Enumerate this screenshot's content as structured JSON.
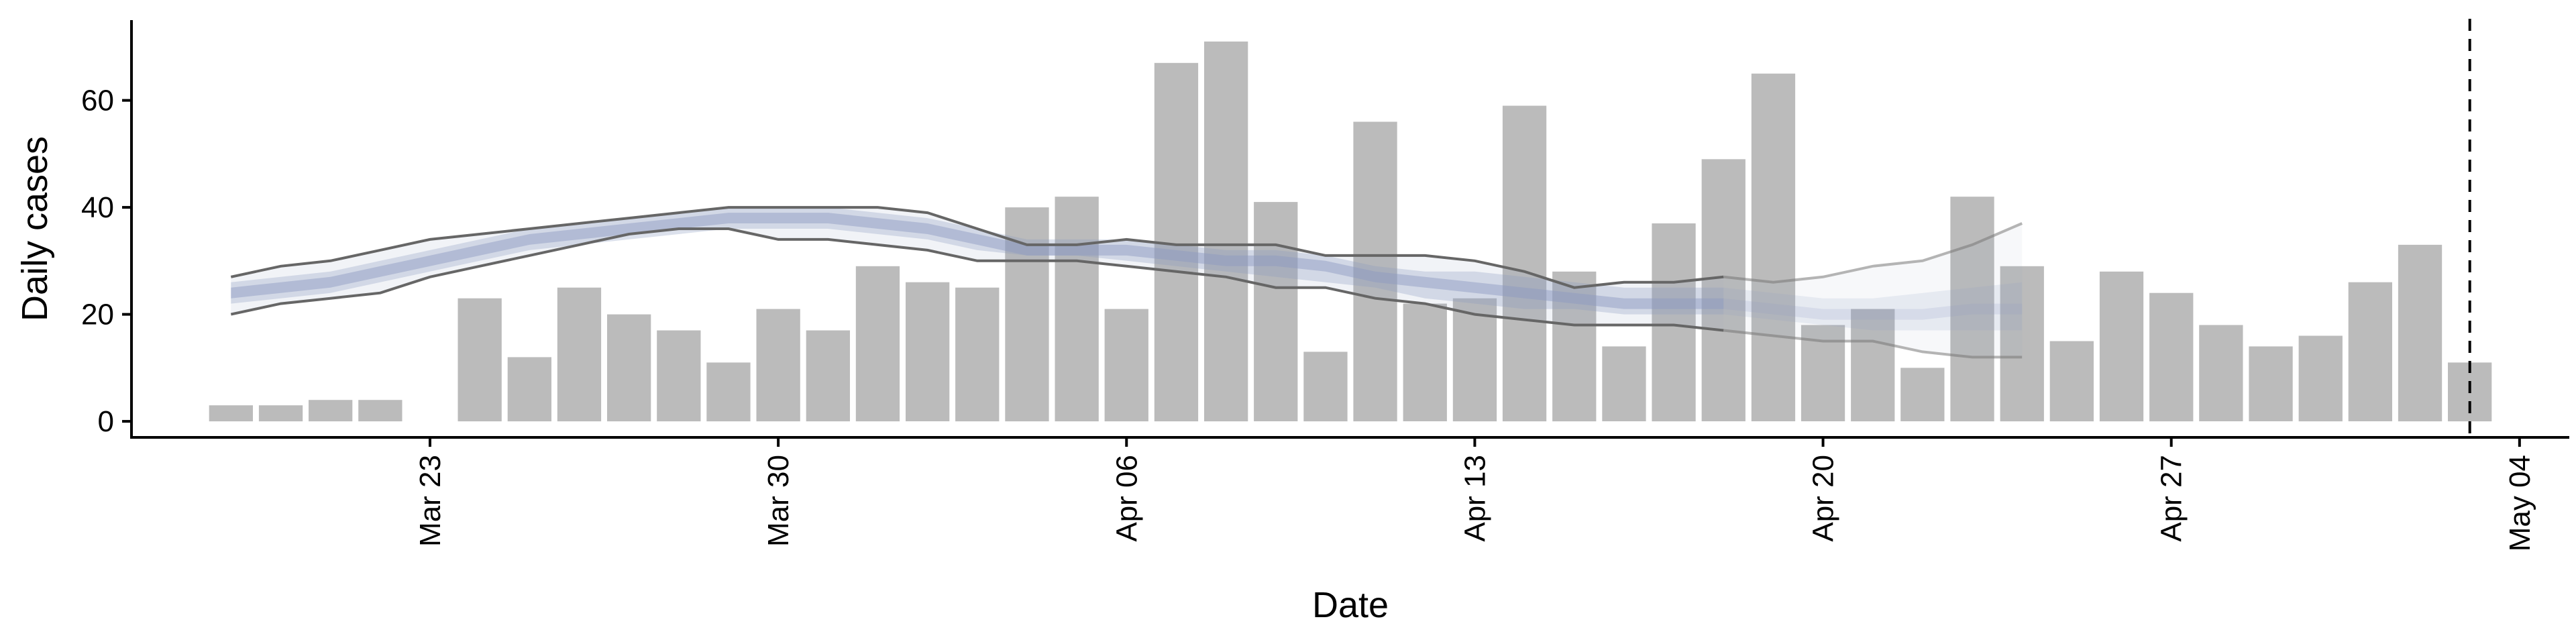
{
  "chart_data": {
    "type": "bar",
    "xlabel": "Date",
    "ylabel": "Daily cases",
    "x_start": "2020-03-19",
    "xlim": [
      "2020-03-17",
      "2020-05-05"
    ],
    "ylim": [
      -3,
      75
    ],
    "y_ticks": [
      0,
      20,
      40,
      60
    ],
    "x_ticks": [
      {
        "date": "2020-03-23",
        "label": "Mar 23"
      },
      {
        "date": "2020-03-30",
        "label": "Mar 30"
      },
      {
        "date": "2020-04-06",
        "label": "Apr 06"
      },
      {
        "date": "2020-04-13",
        "label": "Apr 13"
      },
      {
        "date": "2020-04-20",
        "label": "Apr 20"
      },
      {
        "date": "2020-04-27",
        "label": "Apr 27"
      },
      {
        "date": "2020-05-04",
        "label": "May 04"
      }
    ],
    "bars": {
      "color": "#bbbbbb",
      "values": [
        3,
        3,
        4,
        4,
        0,
        23,
        12,
        25,
        20,
        17,
        11,
        21,
        17,
        29,
        26,
        25,
        40,
        42,
        21,
        67,
        71,
        41,
        13,
        56,
        22,
        23,
        59,
        28,
        14,
        37,
        49,
        65,
        18,
        21,
        10,
        42,
        29,
        15,
        28,
        24,
        18,
        14,
        16,
        26,
        33,
        11
      ]
    },
    "estimate": {
      "color": "#8c9ac0",
      "x_start": "2020-03-19",
      "median": [
        24,
        25,
        26,
        28,
        30,
        32,
        34,
        35,
        36,
        37,
        38,
        38,
        38,
        37,
        36,
        34,
        32,
        32,
        32,
        31,
        30,
        30,
        29,
        27,
        26,
        25,
        24,
        23,
        22,
        22,
        22,
        21,
        20,
        20,
        20,
        21,
        21
      ],
      "inner_lower": [
        22,
        23,
        24,
        26,
        28,
        30,
        32,
        33,
        34,
        35,
        36,
        36,
        36,
        35,
        34,
        32,
        31,
        31,
        30,
        29,
        28,
        27,
        26,
        25,
        23,
        22,
        21,
        21,
        20,
        20,
        20,
        19,
        18,
        17,
        17,
        17,
        17
      ],
      "inner_upper": [
        26,
        27,
        28,
        30,
        32,
        34,
        36,
        37,
        38,
        39,
        40,
        40,
        40,
        39,
        38,
        36,
        34,
        34,
        34,
        33,
        32,
        32,
        31,
        29,
        28,
        28,
        27,
        26,
        25,
        25,
        25,
        24,
        23,
        23,
        24,
        25,
        26
      ],
      "lower": [
        20,
        22,
        23,
        24,
        27,
        29,
        31,
        33,
        35,
        36,
        36,
        34,
        34,
        33,
        32,
        30,
        30,
        30,
        29,
        28,
        27,
        25,
        25,
        23,
        22,
        20,
        19,
        18,
        18,
        18,
        17,
        16,
        15,
        15,
        13,
        12,
        12
      ],
      "upper": [
        27,
        29,
        30,
        32,
        34,
        35,
        36,
        37,
        38,
        39,
        40,
        40,
        40,
        40,
        39,
        36,
        33,
        33,
        34,
        33,
        33,
        33,
        31,
        31,
        31,
        30,
        28,
        25,
        26,
        26,
        27,
        26,
        27,
        29,
        30,
        33,
        37
      ],
      "dark_until_index": 30
    },
    "vline": {
      "date": "2020-05-03",
      "style": "dashed",
      "color": "#000000"
    }
  }
}
